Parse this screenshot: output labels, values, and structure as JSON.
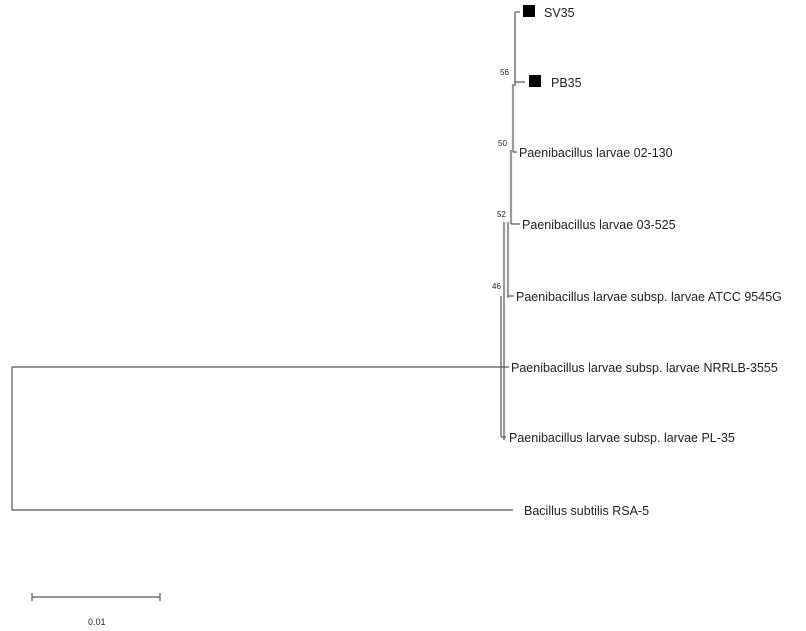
{
  "tree": {
    "taxa": [
      {
        "label": "SV35",
        "marker": "filled-square"
      },
      {
        "label": "PB35",
        "marker": "filled-square"
      },
      {
        "label": "Paenibacillus larvae 02-130"
      },
      {
        "label": "Paenibacillus larvae 03-525"
      },
      {
        "label": "Paenibacillus larvae subsp. larvae ATCC 9545G"
      },
      {
        "label": "Paenibacillus larvae subsp. larvae NRRLB-3555"
      },
      {
        "label": "Paenibacillus larvae subsp. larvae PL-35"
      },
      {
        "label": "Bacillus subtilis RSA-5"
      }
    ],
    "bootstrap_values": [
      "56",
      "50",
      "52",
      "46"
    ],
    "scale_bar": {
      "label": "0.01"
    }
  }
}
